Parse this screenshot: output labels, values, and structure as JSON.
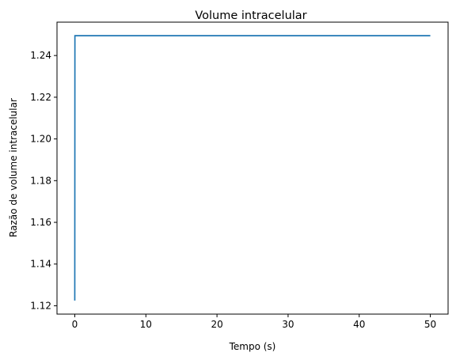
{
  "chart_data": {
    "type": "line",
    "title": "Volume intracelular",
    "xlabel": "Tempo (s)",
    "ylabel": "Razão de volume intracelular",
    "xlim": [
      -2.5,
      52.5
    ],
    "ylim": [
      1.116,
      1.256
    ],
    "xticks": [
      0,
      10,
      20,
      30,
      40,
      50
    ],
    "xtick_labels": [
      "0",
      "10",
      "20",
      "30",
      "40",
      "50"
    ],
    "yticks": [
      1.12,
      1.14,
      1.16,
      1.18,
      1.2,
      1.22,
      1.24
    ],
    "ytick_labels": [
      "1.12",
      "1.14",
      "1.16",
      "1.18",
      "1.20",
      "1.22",
      "1.24"
    ],
    "grid": false,
    "series": [
      {
        "color": "#1f77b4",
        "x": [
          0,
          0.02,
          0.1,
          1,
          10,
          20,
          30,
          40,
          50
        ],
        "y": [
          1.1225,
          1.2495,
          1.2495,
          1.2495,
          1.2495,
          1.2495,
          1.2495,
          1.2495,
          1.2495
        ]
      }
    ]
  }
}
